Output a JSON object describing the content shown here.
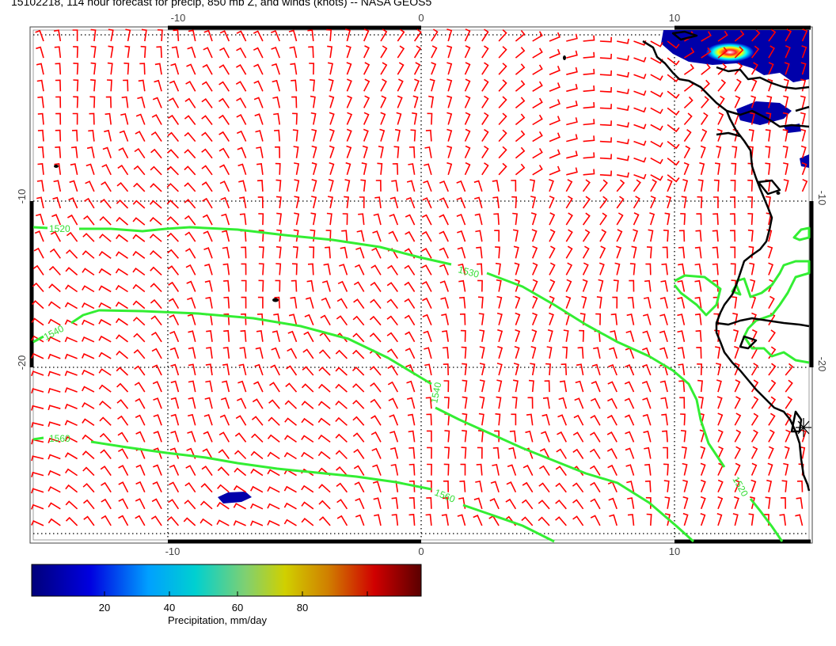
{
  "title": "15102218, 114 hour forecast for precip, 850 mb Z, and winds (knots) -- NASA GEOS5",
  "map": {
    "lon_ticks_top": [
      "-10",
      "0",
      "10"
    ],
    "lon_ticks_bottom": [
      "-10",
      "0",
      "10"
    ],
    "lat_ticks_left": [
      "-10",
      "-20"
    ],
    "lat_ticks_right": [
      "-10",
      "-20"
    ],
    "wind_barb_color": "#ff0000",
    "contour_color": "#33ee33",
    "coastline_color": "#000000",
    "contours": [
      {
        "label": "1520"
      },
      {
        "label": "1530"
      },
      {
        "label": "1540"
      },
      {
        "label": "1540"
      },
      {
        "label": "1560"
      },
      {
        "label": "1560"
      },
      {
        "label": "1520"
      }
    ]
  },
  "colorbar": {
    "ticks": [
      "20",
      "40",
      "60",
      "80"
    ],
    "title": "Precipitation, mm/day",
    "colors": [
      "#00008b",
      "#0000ff",
      "#00bfff",
      "#00ced1",
      "#7fd07f",
      "#c8c800",
      "#d08000",
      "#c80000",
      "#6a0000"
    ]
  }
}
